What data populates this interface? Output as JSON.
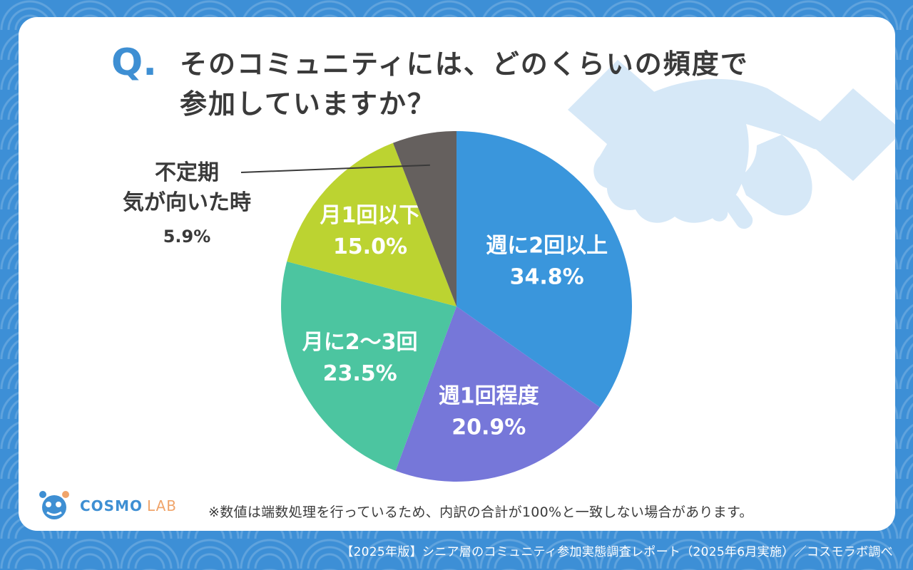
{
  "question": {
    "mark": "Q.",
    "text": "そのコミュニティには、どのくらいの頻度で\n参加していますか？"
  },
  "chart_data": {
    "type": "pie",
    "title": "",
    "slices": [
      {
        "label": "週に2回以上",
        "value": 34.8,
        "display": "34.8%",
        "color": "#3a96dc"
      },
      {
        "label": "週1回程度",
        "value": 20.9,
        "display": "20.9%",
        "color": "#7677d9"
      },
      {
        "label": "月に2〜3回",
        "value": 23.5,
        "display": "23.5%",
        "color": "#4cc5a0"
      },
      {
        "label": "月1回以下",
        "value": 15.0,
        "display": "15.0%",
        "color": "#bcd331"
      },
      {
        "label": "不定期\n気が向いた時",
        "value": 5.9,
        "display": "5.9%",
        "color": "#65605e"
      }
    ],
    "legend": "none"
  },
  "footer": {
    "note": "※数値は端数処理を行っているため、内訳の合計が100%と一致しない場合があります。",
    "logo_main": "COSMO",
    "logo_sub": "LAB",
    "credit": "【2025年版】シニア層のコミュニティ参加実態調査レポート（2025年6月実施）／コスモラボ調べ"
  },
  "colors": {
    "accent": "#3e8fd3",
    "background": "#3d8fd6",
    "text": "#3a3a3a"
  }
}
